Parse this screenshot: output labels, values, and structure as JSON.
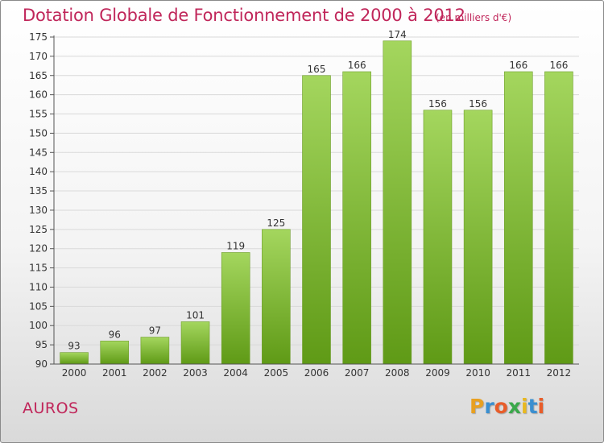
{
  "header": {
    "title": "Dotation Globale de Fonctionnement de 2000 à 2012",
    "unit": "(en milliers d'€)"
  },
  "footer": {
    "commune": "AUROS",
    "logo_letters": [
      "P",
      "r",
      "o",
      "x",
      "i",
      "t",
      "i"
    ],
    "logo_colors": [
      "#e8a020",
      "#3a8fd0",
      "#e85d2a",
      "#3aa84a",
      "#e8b820",
      "#3a8fd0",
      "#e85d2a"
    ]
  },
  "colors": {
    "bar_top": "#a4d65e",
    "bar_bottom": "#5f9a16",
    "grid": "#d9d9d9",
    "axis": "#555555",
    "text": "#333333"
  },
  "chart_data": {
    "type": "bar",
    "categories": [
      "2000",
      "2001",
      "2002",
      "2003",
      "2004",
      "2005",
      "2006",
      "2007",
      "2008",
      "2009",
      "2010",
      "2011",
      "2012"
    ],
    "values": [
      93,
      96,
      97,
      101,
      119,
      125,
      165,
      166,
      174,
      156,
      156,
      166,
      166
    ],
    "ylim": [
      90,
      175
    ],
    "yticks": [
      90,
      95,
      100,
      105,
      110,
      115,
      120,
      125,
      130,
      135,
      140,
      145,
      150,
      155,
      160,
      165,
      170,
      175
    ],
    "grid": true
  }
}
